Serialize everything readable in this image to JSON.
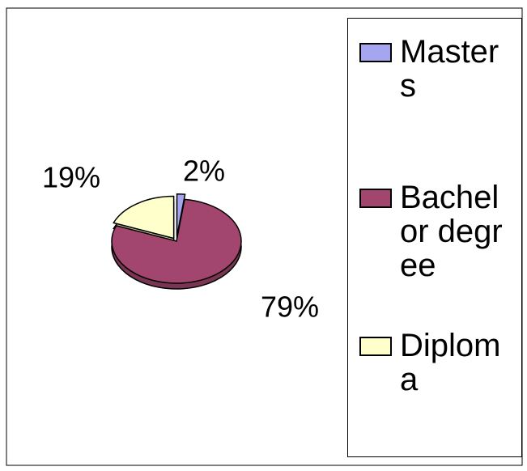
{
  "chart_data": {
    "type": "pie",
    "categories": [
      "Masters",
      "Bachelor degree",
      "Diploma"
    ],
    "values": [
      2,
      79,
      19
    ],
    "value_labels": [
      "2%",
      "79%",
      "19%"
    ],
    "colors": [
      "#a6a6f0",
      "#a3466f",
      "#ffffcc"
    ],
    "legend": "right"
  }
}
